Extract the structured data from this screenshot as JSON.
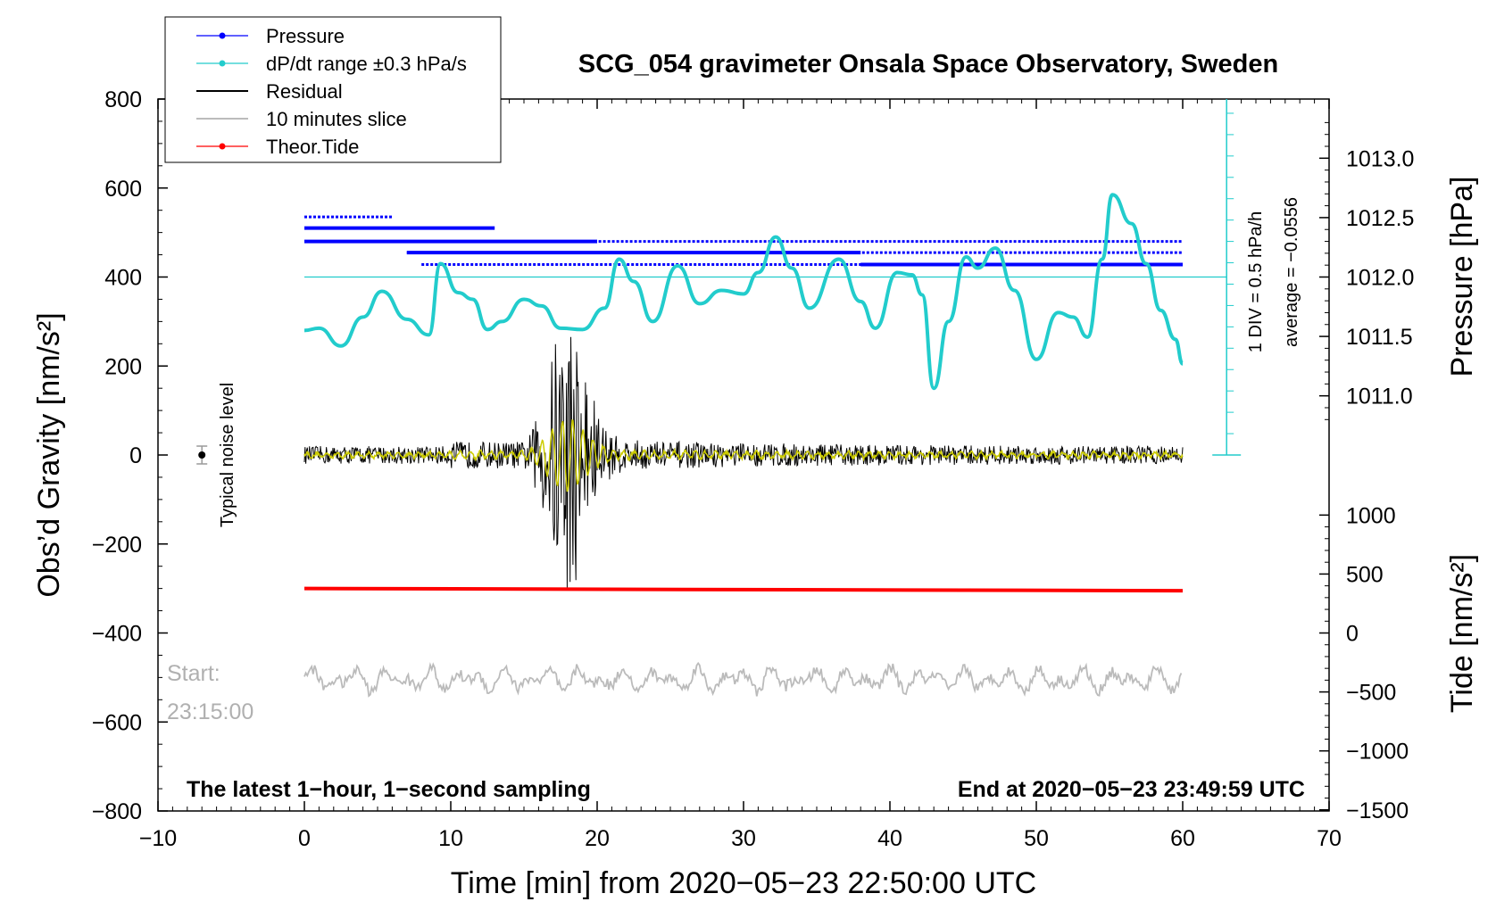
{
  "chart_data": {
    "type": "line",
    "title": "SCG_054 gravimeter Onsala Space Observatory, Sweden",
    "xlabel": "Time [min] from 2020−05−23 22:50:00 UTC",
    "ylabel_left": "Obs’d Gravity [nm/s²]",
    "ylabel_right_top": "Pressure [hPa]",
    "ylabel_right_bottom": "Tide [nm/s²]",
    "xlim": [
      -10,
      70
    ],
    "ylim": [
      -800,
      800
    ],
    "x_ticks": [
      "−10",
      "0",
      "10",
      "20",
      "30",
      "40",
      "50",
      "60",
      "70"
    ],
    "y_ticks": [
      "800",
      "600",
      "400",
      "200",
      "0",
      "−200",
      "−400",
      "−600",
      "−800"
    ],
    "pressure_ticks": [
      "1013.0",
      "1012.5",
      "1012.0",
      "1011.5",
      "1011.0"
    ],
    "pressure_tick_values": [
      1013.0,
      1012.5,
      1012.0,
      1011.5,
      1011.0
    ],
    "pressure_axis_map": {
      "value_a": 1012.0,
      "gravity_a": 400,
      "value_b": 1013.0,
      "gravity_b": 667
    },
    "tide_ticks": [
      "1000",
      "500",
      "0",
      "−500",
      "−1000",
      "−1500"
    ],
    "tide_tick_values": [
      1000,
      500,
      0,
      -500,
      -1000,
      -1500
    ],
    "tide_axis_map": {
      "value_a": 0,
      "gravity_a": -400,
      "value_b": 1000,
      "gravity_b": -135
    },
    "legend": [
      {
        "label": "Pressure",
        "color": "#0000ff",
        "marker": true
      },
      {
        "label": "dP/dt range ±0.3 hPa/s",
        "color": "#22cccc",
        "marker": true
      },
      {
        "label": "Residual",
        "color": "#000000",
        "marker": false
      },
      {
        "label": "10 minutes slice",
        "color": "#bbbbbb",
        "marker": false
      },
      {
        "label": "Theor.Tide",
        "color": "#ff0000",
        "marker": true
      }
    ],
    "series": {
      "pressure_levels_gravity": [
        {
          "value": 535,
          "x_range": [
            0,
            6
          ]
        },
        {
          "value": 510,
          "x_range": [
            0,
            13
          ]
        },
        {
          "value": 480,
          "x_range": [
            1.5,
            60
          ]
        },
        {
          "value": 455,
          "x_range": [
            7,
            60
          ]
        },
        {
          "value": 428,
          "x_range": [
            8,
            60
          ]
        }
      ],
      "dpdt_curve": {
        "x": [
          0,
          1,
          2.5,
          4,
          5.3,
          7,
          8.5,
          9.3,
          10.5,
          11.5,
          12.5,
          13.5,
          15,
          16.2,
          17.5,
          19,
          20.5,
          21.5,
          22.5,
          23.8,
          25.5,
          27,
          28.5,
          30,
          31,
          32.2,
          33.3,
          34.5,
          36.5,
          38,
          39,
          40.5,
          41.5,
          42.2,
          43,
          44,
          45.2,
          46,
          47.2,
          48.5,
          50,
          51.5,
          52.5,
          53.5,
          54.5,
          55.2,
          56.5,
          57.5,
          58.5,
          59.5,
          60
        ],
        "y": [
          280,
          285,
          245,
          310,
          368,
          305,
          270,
          430,
          365,
          350,
          282,
          300,
          350,
          335,
          285,
          282,
          330,
          440,
          390,
          300,
          425,
          340,
          370,
          362,
          410,
          490,
          420,
          330,
          440,
          345,
          285,
          410,
          405,
          360,
          150,
          300,
          445,
          420,
          465,
          370,
          215,
          320,
          310,
          265,
          440,
          585,
          520,
          430,
          325,
          260,
          205
        ]
      },
      "dpdt_zero_line": 400,
      "residual": {
        "baseline": 0,
        "quake_onset_x": 15,
        "quake_peak_x": 17.8,
        "max_abs_amplitude": 290,
        "noise_amplitude": 20
      },
      "tide_gravity": [
        {
          "x": 0,
          "y": -300
        },
        {
          "x": 60,
          "y": -305
        }
      ],
      "slice_baseline": -505,
      "noise_level": {
        "x": -7,
        "y": 0,
        "err": 20
      }
    },
    "pressure_scale_label": "1 DIV = 0.5 hPa/h",
    "average_label": "average = −0.0556",
    "noise_label": "Typical noise level",
    "footer_left": "The latest 1−hour, 1−second sampling",
    "footer_right": "End at 2020−05−23 23:49:59 UTC",
    "start_label": "Start:",
    "start_time": "23:15:00"
  }
}
